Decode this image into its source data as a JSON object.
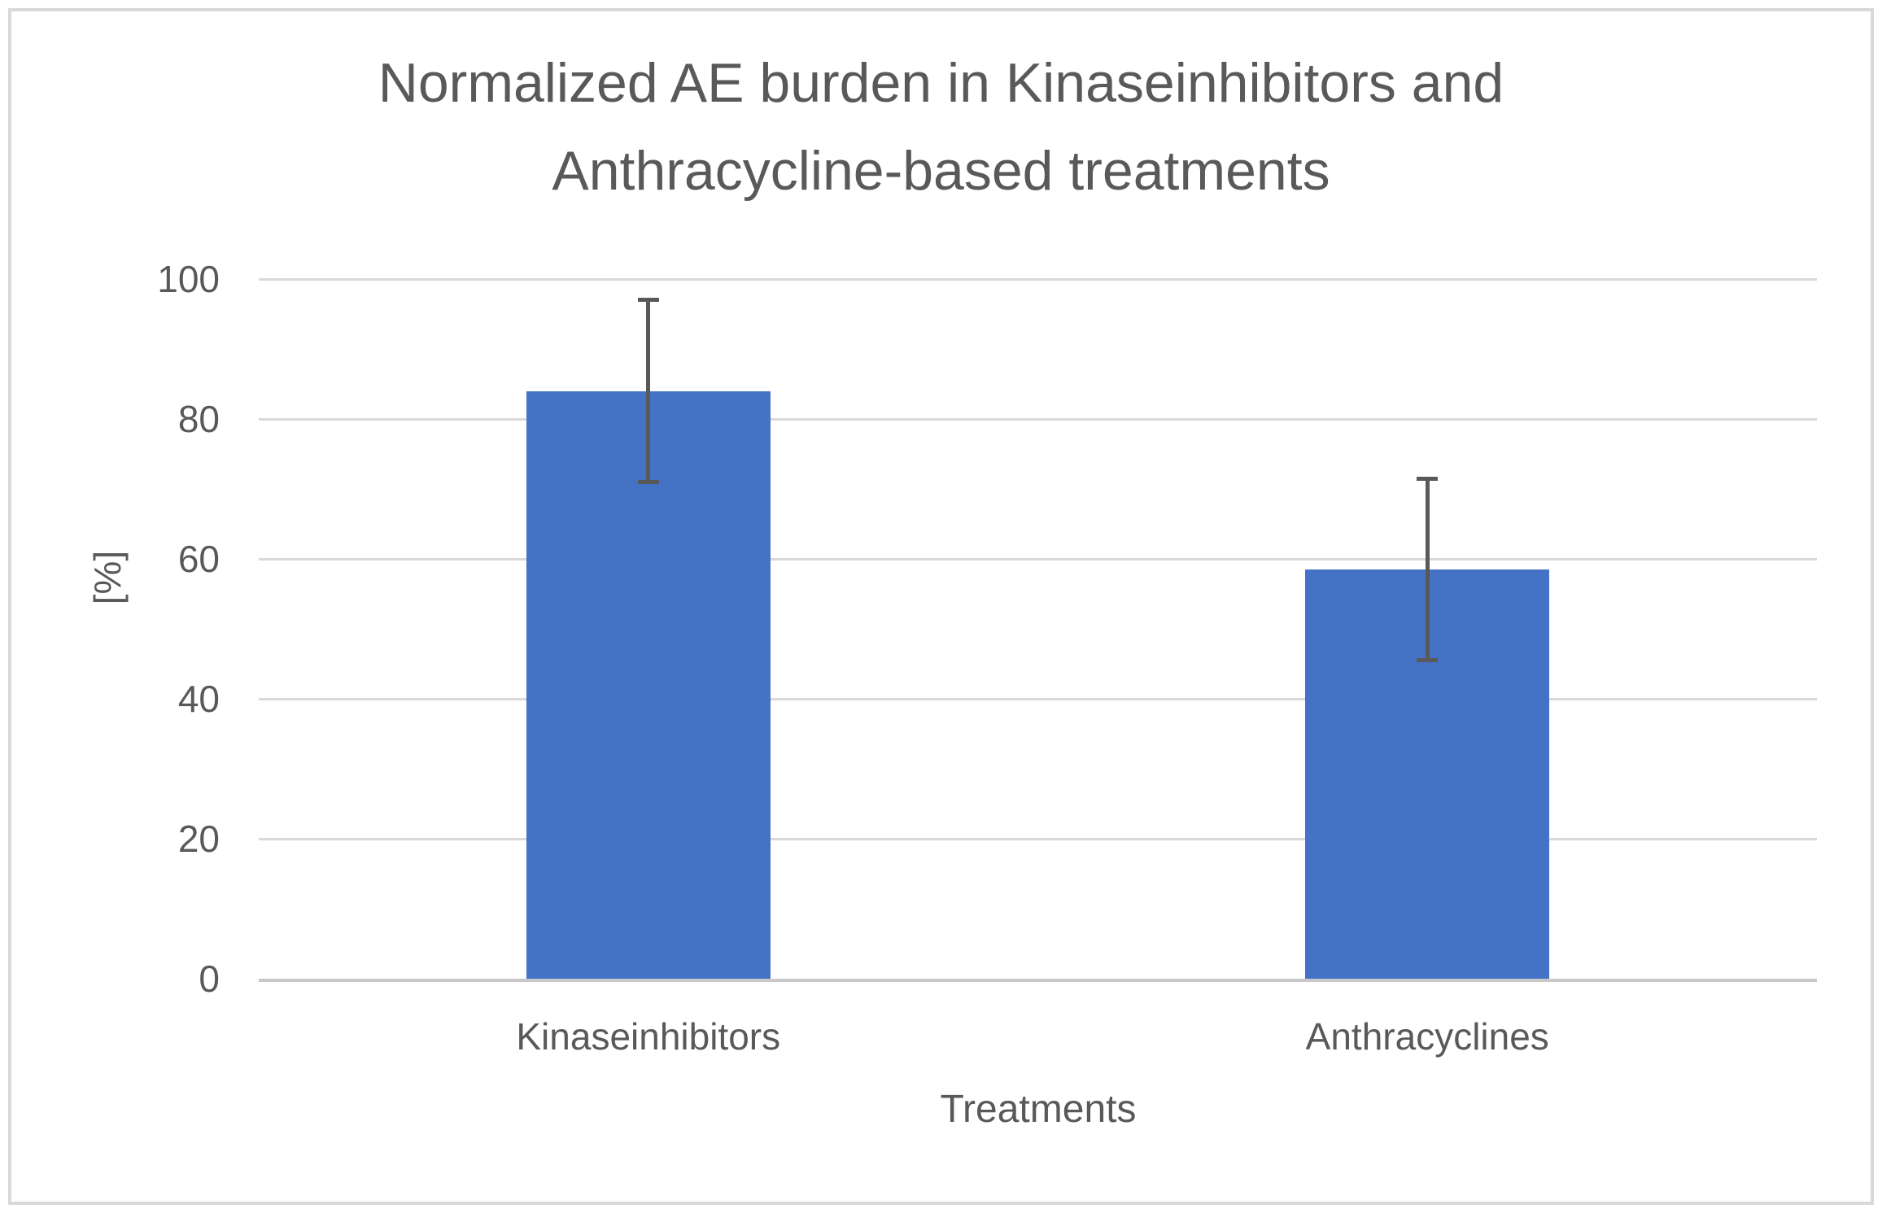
{
  "frame": {
    "border_color": "#d9d9d9"
  },
  "chart_data": {
    "type": "bar",
    "title": "Normalized AE burden in Kinaseinhibitors and Anthracycline-based treatments",
    "title_lines": [
      "Normalized AE burden in Kinaseinhibitors and",
      "Anthracycline-based treatments"
    ],
    "categories": [
      "Kinaseinhibitors",
      "Anthracyclines"
    ],
    "values": [
      84,
      58.5
    ],
    "error_bars": {
      "plus": [
        13,
        13
      ],
      "minus": [
        13,
        13
      ]
    },
    "xlabel": "Treatments",
    "ylabel": "[%]",
    "ylim": [
      0,
      100
    ],
    "yticks": [
      0,
      20,
      40,
      60,
      80,
      100
    ],
    "grid": true,
    "legend": "none",
    "bar_color": "#4472c4",
    "error_bar_color": "#595959",
    "gridline_color": "#d9d9d9",
    "axis_line_color": "#c9c7c7",
    "text_color": "#595959"
  }
}
